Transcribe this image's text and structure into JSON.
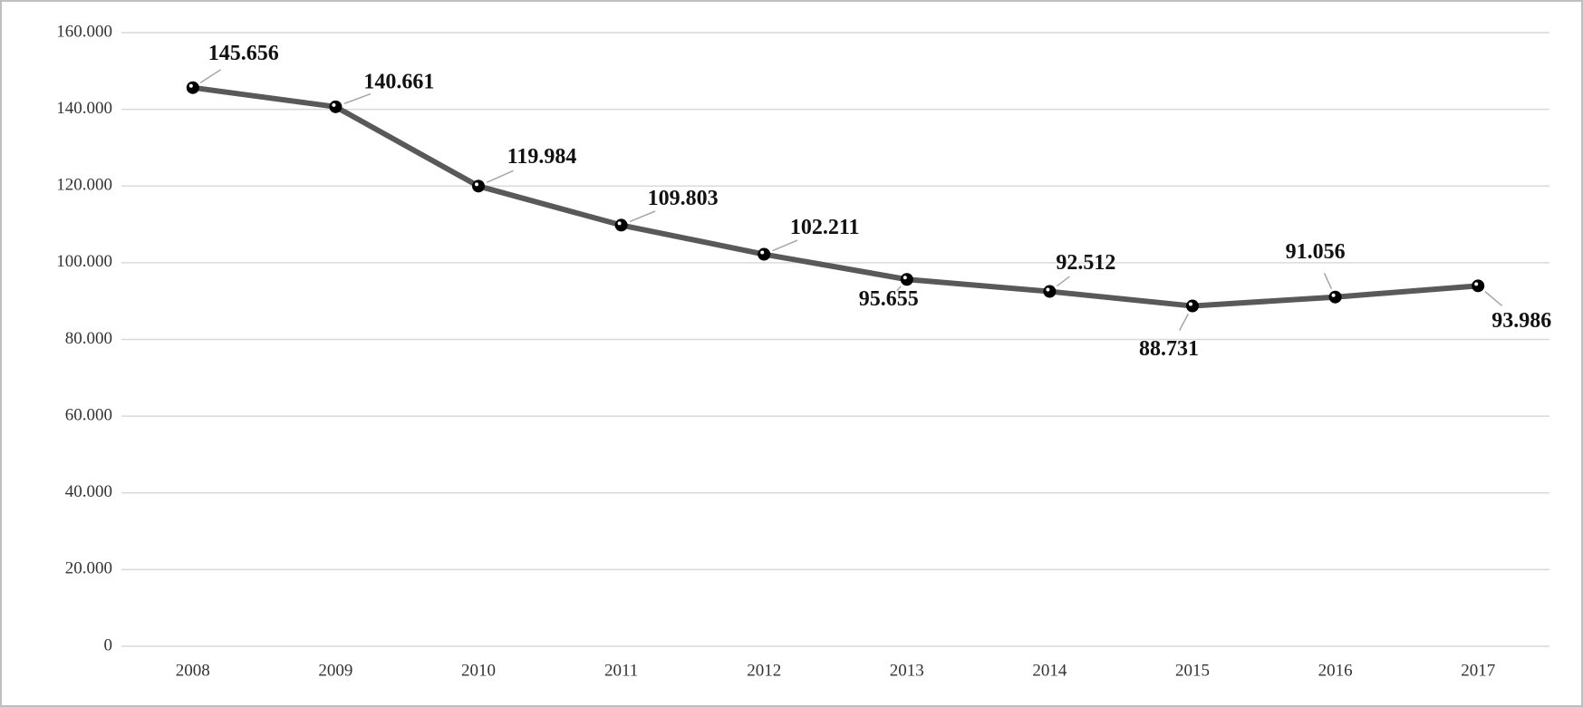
{
  "chart_data": {
    "type": "line",
    "categories": [
      "2008",
      "2009",
      "2010",
      "2011",
      "2012",
      "2013",
      "2014",
      "2015",
      "2016",
      "2017"
    ],
    "values": [
      145656,
      140661,
      119984,
      109803,
      102211,
      95655,
      92512,
      88731,
      91056,
      93986
    ],
    "value_labels": [
      "145.656",
      "140.661",
      "119.984",
      "109.803",
      "102.211",
      "95.655",
      "92.512",
      "88.731",
      "91.056",
      "93.986"
    ],
    "color": "#595959",
    "ylim": [
      0,
      160000
    ],
    "yticks": [
      0,
      {
        "value": 20000,
        "label": "20.000"
      },
      {
        "value": 40000,
        "label": "40.000"
      },
      {
        "value": 60000,
        "label": "60.000"
      },
      {
        "value": 80000,
        "label": "80.000"
      },
      {
        "value": 100000,
        "label": "100.000"
      },
      {
        "value": 120000,
        "label": "120.000"
      },
      {
        "value": 140000,
        "label": "140.000"
      },
      {
        "value": 160000,
        "label": "160.000"
      }
    ],
    "grid": true
  }
}
